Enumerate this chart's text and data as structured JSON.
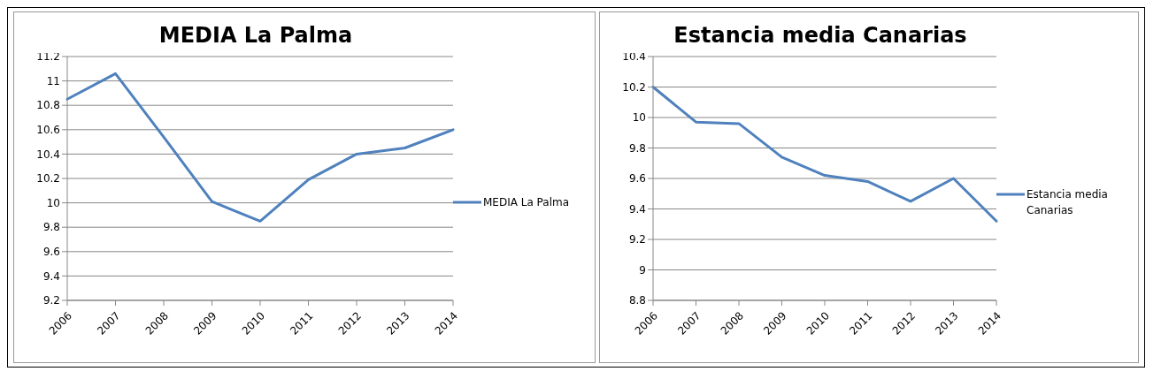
{
  "chart_data": [
    {
      "type": "line",
      "title": "MEDIA La Palma",
      "categories": [
        "2006",
        "2007",
        "2008",
        "2009",
        "2010",
        "2011",
        "2012",
        "2013",
        "2014"
      ],
      "series": [
        {
          "name": "MEDIA La Palma",
          "color": "#4f81bd",
          "values": [
            10.85,
            11.06,
            10.54,
            10.01,
            9.85,
            10.19,
            10.4,
            10.45,
            10.6
          ]
        }
      ],
      "ylim": [
        9.2,
        11.2
      ],
      "yticks": [
        9.2,
        9.4,
        9.6,
        9.8,
        10,
        10.2,
        10.4,
        10.6,
        10.8,
        11,
        11.2
      ],
      "grid": "y",
      "legend": "right",
      "marker": "none"
    },
    {
      "type": "line",
      "title": "Estancia media Canarias",
      "categories": [
        "2006",
        "2007",
        "2008",
        "2009",
        "2010",
        "2011",
        "2012",
        "2013",
        "2014"
      ],
      "series": [
        {
          "name": "Estancia media Canarias",
          "color": "#4f81bd",
          "values": [
            10.2,
            9.97,
            9.96,
            9.74,
            9.62,
            9.58,
            9.45,
            9.6,
            9.32
          ]
        }
      ],
      "ylim": [
        8.8,
        10.4
      ],
      "yticks": [
        8.8,
        9,
        9.2,
        9.4,
        9.6,
        9.8,
        10,
        10.2,
        10.4
      ],
      "grid": "y",
      "legend": "right",
      "marker": "none"
    }
  ]
}
